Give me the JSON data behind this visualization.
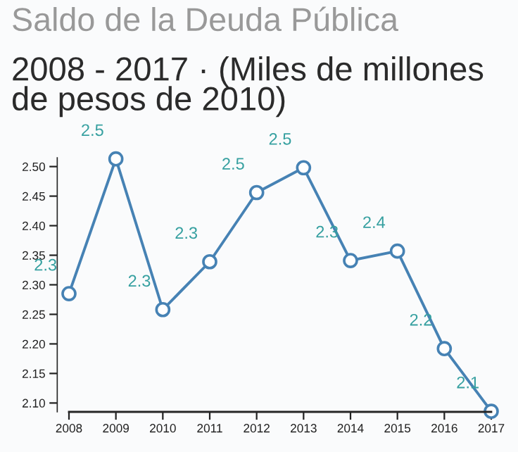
{
  "chart_data": {
    "type": "line",
    "title": "Saldo de la Deuda Pública",
    "subtitle": "2008 - 2017 · (Miles de millones de pesos de 2010)",
    "x": [
      2008,
      2009,
      2010,
      2011,
      2012,
      2013,
      2014,
      2015,
      2016,
      2017
    ],
    "xlim": [
      2008,
      2017
    ],
    "xticks": [
      2008,
      2009,
      2010,
      2011,
      2012,
      2013,
      2014,
      2015,
      2016,
      2017
    ],
    "ylim": [
      2.085,
      2.515
    ],
    "yticks": [
      {
        "value": 2.1,
        "label": "2.10"
      },
      {
        "value": 2.15,
        "label": "2.15"
      },
      {
        "value": 2.2,
        "label": "2.20"
      },
      {
        "value": 2.25,
        "label": "2.25"
      },
      {
        "value": 2.3,
        "label": "2.30"
      },
      {
        "value": 2.35,
        "label": "2.35"
      },
      {
        "value": 2.4,
        "label": "2.40"
      },
      {
        "value": 2.45,
        "label": "2.45"
      },
      {
        "value": 2.5,
        "label": "2.50"
      }
    ],
    "series": [
      {
        "color": "#4682b4",
        "values": [
          2.285,
          2.513,
          2.258,
          2.339,
          2.456,
          2.498,
          2.341,
          2.357,
          2.192,
          2.086
        ],
        "value_labels": [
          "2.3",
          "2.5",
          "2.3",
          "2.3",
          "2.5",
          "2.5",
          "2.3",
          "2.4",
          "2.2",
          "2.1"
        ]
      }
    ],
    "marker": "circle",
    "line_style": "solid",
    "grid": false,
    "legend": false
  }
}
